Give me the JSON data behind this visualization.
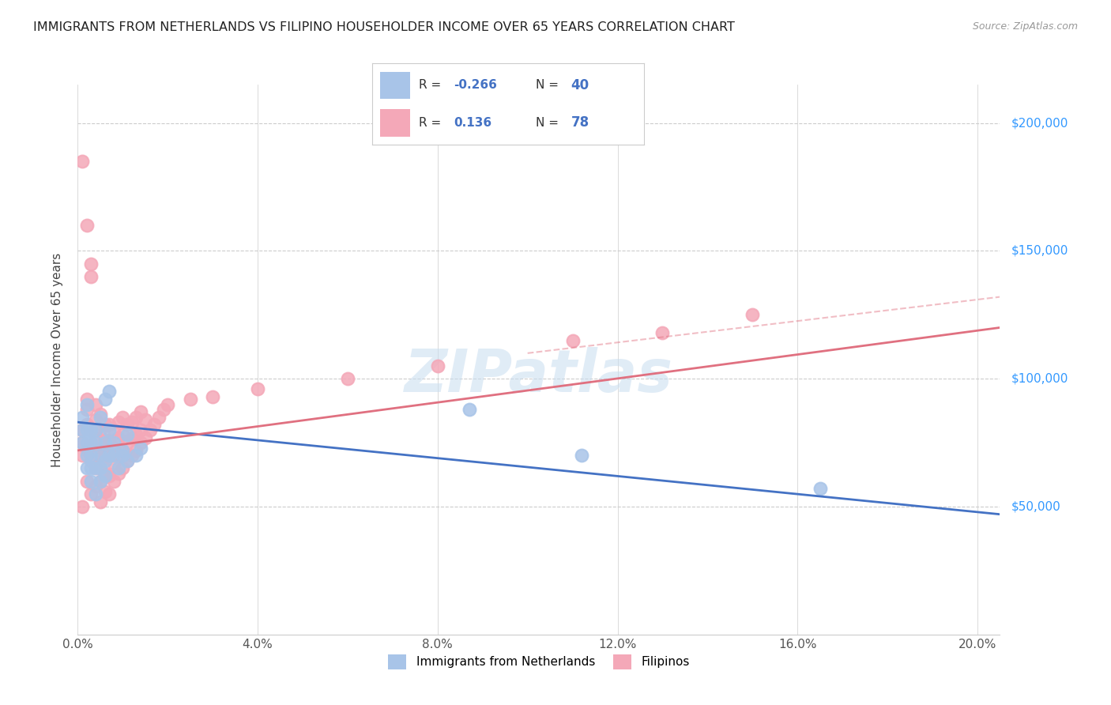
{
  "title": "IMMIGRANTS FROM NETHERLANDS VS FILIPINO HOUSEHOLDER INCOME OVER 65 YEARS CORRELATION CHART",
  "source": "Source: ZipAtlas.com",
  "ylabel": "Householder Income Over 65 years",
  "watermark": "ZIPatlas",
  "legend_netherlands_R": "-0.266",
  "legend_netherlands_N": "40",
  "legend_filipino_R": "0.136",
  "legend_filipino_N": "78",
  "legend_netherlands_label": "Immigrants from Netherlands",
  "legend_filipino_label": "Filipinos",
  "netherlands_color": "#a8c4e8",
  "filipino_color": "#f4a8b8",
  "netherlands_line_color": "#4472c4",
  "filipino_line_color": "#e07080",
  "background_color": "#ffffff",
  "grid_color": "#cccccc",
  "ytick_labels": [
    "$50,000",
    "$100,000",
    "$150,000",
    "$200,000"
  ],
  "ytick_values": [
    50000,
    100000,
    150000,
    200000
  ],
  "ylim": [
    0,
    215000
  ],
  "xlim": [
    0.0,
    0.205
  ],
  "netherlands_scatter_x": [
    0.001,
    0.001,
    0.001,
    0.002,
    0.002,
    0.002,
    0.002,
    0.002,
    0.003,
    0.003,
    0.003,
    0.003,
    0.003,
    0.004,
    0.004,
    0.004,
    0.004,
    0.005,
    0.005,
    0.005,
    0.005,
    0.006,
    0.006,
    0.006,
    0.006,
    0.007,
    0.007,
    0.007,
    0.008,
    0.008,
    0.009,
    0.01,
    0.01,
    0.011,
    0.011,
    0.013,
    0.014,
    0.087,
    0.112,
    0.165
  ],
  "netherlands_scatter_y": [
    75000,
    80000,
    85000,
    65000,
    70000,
    75000,
    80000,
    90000,
    60000,
    65000,
    70000,
    75000,
    80000,
    55000,
    65000,
    75000,
    80000,
    60000,
    65000,
    70000,
    85000,
    62000,
    68000,
    75000,
    92000,
    70000,
    80000,
    95000,
    70000,
    75000,
    65000,
    70000,
    72000,
    68000,
    78000,
    70000,
    73000,
    88000,
    70000,
    57000
  ],
  "filipino_scatter_x": [
    0.001,
    0.001,
    0.001,
    0.001,
    0.001,
    0.002,
    0.002,
    0.002,
    0.002,
    0.002,
    0.002,
    0.003,
    0.003,
    0.003,
    0.003,
    0.003,
    0.003,
    0.004,
    0.004,
    0.004,
    0.004,
    0.004,
    0.004,
    0.005,
    0.005,
    0.005,
    0.005,
    0.005,
    0.005,
    0.006,
    0.006,
    0.006,
    0.006,
    0.006,
    0.007,
    0.007,
    0.007,
    0.007,
    0.007,
    0.008,
    0.008,
    0.008,
    0.008,
    0.009,
    0.009,
    0.009,
    0.009,
    0.01,
    0.01,
    0.01,
    0.01,
    0.011,
    0.011,
    0.011,
    0.012,
    0.012,
    0.012,
    0.013,
    0.013,
    0.013,
    0.014,
    0.014,
    0.014,
    0.015,
    0.015,
    0.016,
    0.017,
    0.018,
    0.019,
    0.02,
    0.025,
    0.03,
    0.04,
    0.06,
    0.08,
    0.11,
    0.13,
    0.15
  ],
  "filipino_scatter_y": [
    185000,
    70000,
    75000,
    80000,
    50000,
    60000,
    72000,
    160000,
    82000,
    88000,
    92000,
    55000,
    145000,
    68000,
    74000,
    80000,
    140000,
    58000,
    65000,
    72000,
    78000,
    84000,
    90000,
    52000,
    60000,
    67000,
    73000,
    80000,
    86000,
    56000,
    63000,
    70000,
    76000,
    82000,
    55000,
    62000,
    70000,
    76000,
    82000,
    60000,
    67000,
    73000,
    80000,
    63000,
    70000,
    77000,
    83000,
    65000,
    72000,
    78000,
    85000,
    68000,
    75000,
    82000,
    70000,
    77000,
    83000,
    72000,
    78000,
    85000,
    75000,
    80000,
    87000,
    77000,
    84000,
    80000,
    82000,
    85000,
    88000,
    90000,
    92000,
    93000,
    96000,
    100000,
    105000,
    115000,
    118000,
    125000
  ],
  "netherlands_line_x": [
    0.0,
    0.205
  ],
  "netherlands_line_y": [
    83000,
    47000
  ],
  "filipino_line_x": [
    0.0,
    0.205
  ],
  "filipino_line_y": [
    72000,
    120000
  ],
  "filipino_dashed_line_x": [
    0.1,
    0.205
  ],
  "filipino_dashed_line_y": [
    110000,
    132000
  ],
  "xtick_vals": [
    0.0,
    0.04,
    0.08,
    0.12,
    0.16,
    0.2
  ],
  "xtick_labels": [
    "0.0%",
    "4.0%",
    "8.0%",
    "12.0%",
    "16.0%",
    "20.0%"
  ]
}
